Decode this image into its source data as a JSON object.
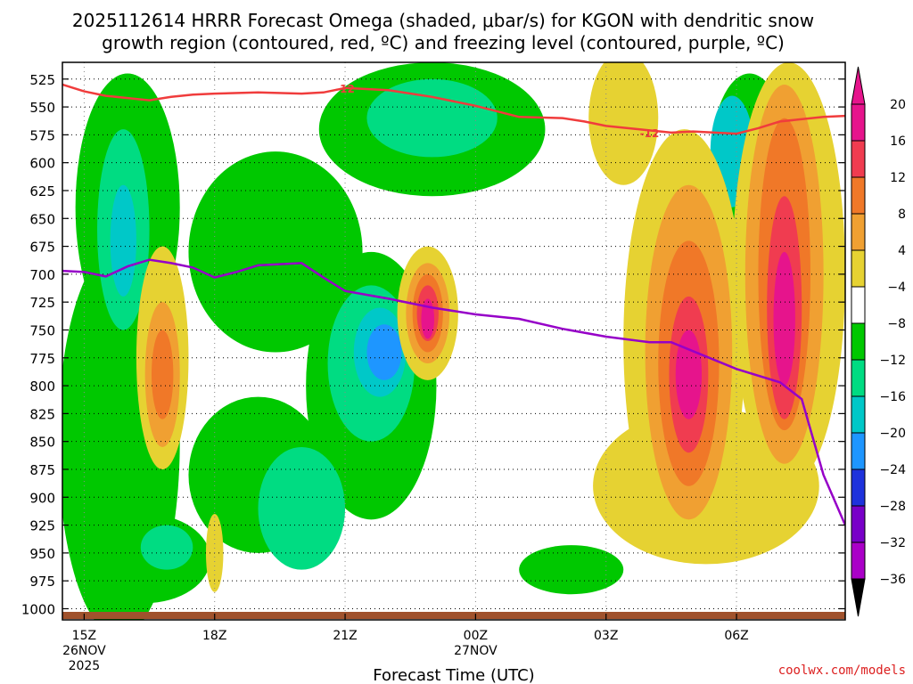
{
  "chart_data": {
    "type": "contour",
    "title_lines": [
      "2025112614 HRRR Forecast Omega (shaded, μbar/s) for KGON with dendritic snow",
      "growth region (contoured, red, ºC) and freezing level (contoured, purple, ºC)"
    ],
    "xlabel": "Forecast Time (UTC)",
    "credit": "coolwx.com/models",
    "x_range_hours": [
      14.5,
      32.5
    ],
    "y_range_mb": [
      1010,
      510
    ],
    "y_ticks": [
      525,
      550,
      575,
      600,
      625,
      650,
      675,
      700,
      725,
      750,
      775,
      800,
      825,
      850,
      875,
      900,
      925,
      950,
      975,
      1000
    ],
    "x_ticks": [
      {
        "hour": 15,
        "lines": [
          "15Z",
          "26NOV",
          "2025"
        ]
      },
      {
        "hour": 18,
        "lines": [
          "18Z"
        ]
      },
      {
        "hour": 21,
        "lines": [
          "21Z"
        ]
      },
      {
        "hour": 24,
        "lines": [
          "00Z",
          "27NOV"
        ]
      },
      {
        "hour": 27,
        "lines": [
          "03Z"
        ]
      },
      {
        "hour": 30,
        "lines": [
          "06Z"
        ]
      }
    ],
    "colorbar": {
      "levels": [
        20,
        16,
        12,
        8,
        4,
        -4,
        -8,
        -12,
        -16,
        -20,
        -24,
        -28,
        -32,
        -36
      ],
      "labels": [
        "20",
        "16",
        "12",
        "8",
        "4",
        "−4",
        "−8",
        "−12",
        "−16",
        "−20",
        "−24",
        "−28",
        "−32",
        "−36"
      ],
      "colors": [
        "#e6148c",
        "#f03c50",
        "#f07828",
        "#f0a032",
        "#e6d232",
        "#ffffff",
        "#00c800",
        "#00dc82",
        "#00c8c8",
        "#1e96ff",
        "#1e32dc",
        "#7800c8",
        "#aa00c8",
        "#a0a0a0"
      ]
    },
    "omega_regions": [
      {
        "color": "#00c800",
        "hour": 15.8,
        "p": 850,
        "rh": 1.4,
        "rp": 175
      },
      {
        "color": "#00c800",
        "hour": 16.0,
        "p": 640,
        "rh": 1.2,
        "rp": 120
      },
      {
        "color": "#00c800",
        "hour": 19.4,
        "p": 680,
        "rh": 2.0,
        "rp": 90
      },
      {
        "color": "#00c800",
        "hour": 19.0,
        "p": 880,
        "rh": 1.6,
        "rp": 70
      },
      {
        "color": "#00c800",
        "hour": 21.6,
        "p": 800,
        "rh": 1.5,
        "rp": 120
      },
      {
        "color": "#00c800",
        "hour": 23.0,
        "p": 570,
        "rh": 2.6,
        "rp": 60
      },
      {
        "color": "#00c800",
        "hour": 16.4,
        "p": 955,
        "rh": 1.5,
        "rp": 40
      },
      {
        "color": "#00c800",
        "hour": 26.2,
        "p": 965,
        "rh": 1.2,
        "rp": 22
      },
      {
        "color": "#00c800",
        "hour": 30.3,
        "p": 600,
        "rh": 0.9,
        "rp": 80
      },
      {
        "color": "#00dc82",
        "hour": 15.9,
        "p": 660,
        "rh": 0.6,
        "rp": 90
      },
      {
        "color": "#00dc82",
        "hour": 20.0,
        "p": 910,
        "rh": 1.0,
        "rp": 55
      },
      {
        "color": "#00dc82",
        "hour": 21.6,
        "p": 780,
        "rh": 1.0,
        "rp": 70
      },
      {
        "color": "#00dc82",
        "hour": 23.0,
        "p": 560,
        "rh": 1.5,
        "rp": 35
      },
      {
        "color": "#00dc82",
        "hour": 16.9,
        "p": 945,
        "rh": 0.6,
        "rp": 20
      },
      {
        "color": "#00c8c8",
        "hour": 21.8,
        "p": 770,
        "rh": 0.6,
        "rp": 40
      },
      {
        "color": "#00c8c8",
        "hour": 15.9,
        "p": 670,
        "rh": 0.3,
        "rp": 50
      },
      {
        "color": "#00c8c8",
        "hour": 29.9,
        "p": 590,
        "rh": 0.5,
        "rp": 50
      },
      {
        "color": "#1e96ff",
        "hour": 21.9,
        "p": 770,
        "rh": 0.4,
        "rp": 25
      },
      {
        "color": "#e6d232",
        "hour": 16.8,
        "p": 775,
        "rh": 0.6,
        "rp": 100
      },
      {
        "color": "#e6d232",
        "hour": 22.9,
        "p": 735,
        "rh": 0.7,
        "rp": 60
      },
      {
        "color": "#e6d232",
        "hour": 27.4,
        "p": 560,
        "rh": 0.8,
        "rp": 60
      },
      {
        "color": "#e6d232",
        "hour": 28.8,
        "p": 760,
        "rh": 1.4,
        "rp": 190
      },
      {
        "color": "#e6d232",
        "hour": 31.2,
        "p": 700,
        "rh": 1.3,
        "rp": 190
      },
      {
        "color": "#e6d232",
        "hour": 29.3,
        "p": 890,
        "rh": 2.6,
        "rp": 70
      },
      {
        "color": "#e6d232",
        "hour": 18.0,
        "p": 950,
        "rh": 0.2,
        "rp": 35
      },
      {
        "color": "#f0a032",
        "hour": 16.8,
        "p": 790,
        "rh": 0.4,
        "rp": 65
      },
      {
        "color": "#f0a032",
        "hour": 22.9,
        "p": 735,
        "rh": 0.5,
        "rp": 45
      },
      {
        "color": "#f0a032",
        "hour": 28.9,
        "p": 770,
        "rh": 1.0,
        "rp": 150
      },
      {
        "color": "#f0a032",
        "hour": 31.1,
        "p": 700,
        "rh": 0.9,
        "rp": 170
      },
      {
        "color": "#f07828",
        "hour": 16.8,
        "p": 790,
        "rh": 0.25,
        "rp": 40
      },
      {
        "color": "#f07828",
        "hour": 22.9,
        "p": 735,
        "rh": 0.35,
        "rp": 35
      },
      {
        "color": "#f07828",
        "hour": 28.9,
        "p": 780,
        "rh": 0.7,
        "rp": 110
      },
      {
        "color": "#f07828",
        "hour": 31.1,
        "p": 700,
        "rh": 0.6,
        "rp": 140
      },
      {
        "color": "#f03c50",
        "hour": 22.9,
        "p": 735,
        "rh": 0.25,
        "rp": 25
      },
      {
        "color": "#f03c50",
        "hour": 28.9,
        "p": 790,
        "rh": 0.45,
        "rp": 70
      },
      {
        "color": "#f03c50",
        "hour": 31.1,
        "p": 730,
        "rh": 0.4,
        "rp": 100
      },
      {
        "color": "#e6148c",
        "hour": 22.9,
        "p": 740,
        "rh": 0.15,
        "rp": 18
      },
      {
        "color": "#e6148c",
        "hour": 28.9,
        "p": 790,
        "rh": 0.3,
        "rp": 40
      },
      {
        "color": "#e6148c",
        "hour": 31.1,
        "p": 740,
        "rh": 0.25,
        "rp": 60
      }
    ],
    "dgz_minus12": {
      "label": "-12",
      "color": "#f03c3c",
      "points": [
        [
          14.5,
          530
        ],
        [
          15.0,
          536
        ],
        [
          15.5,
          540
        ],
        [
          16.0,
          542
        ],
        [
          16.5,
          544
        ],
        [
          17.0,
          541
        ],
        [
          17.5,
          539
        ],
        [
          18.0,
          538
        ],
        [
          19.0,
          537
        ],
        [
          20.0,
          538
        ],
        [
          20.5,
          537
        ],
        [
          21.0,
          533
        ],
        [
          22.0,
          535
        ],
        [
          23.0,
          541
        ],
        [
          24.0,
          549
        ],
        [
          25.0,
          559
        ],
        [
          26.0,
          560
        ],
        [
          26.5,
          563
        ],
        [
          27.0,
          567
        ],
        [
          28.0,
          571
        ],
        [
          28.5,
          573
        ],
        [
          29.0,
          572
        ],
        [
          30.0,
          574
        ],
        [
          30.5,
          569
        ],
        [
          31.0,
          563
        ],
        [
          32.0,
          559
        ],
        [
          32.5,
          558
        ]
      ],
      "label_positions": [
        [
          21.0,
          533
        ],
        [
          28.0,
          573
        ]
      ]
    },
    "freezing_level": {
      "color": "#9600c8",
      "points": [
        [
          14.5,
          697
        ],
        [
          15.0,
          698
        ],
        [
          15.5,
          702
        ],
        [
          16.0,
          693
        ],
        [
          16.5,
          687
        ],
        [
          17.0,
          690
        ],
        [
          17.5,
          694
        ],
        [
          18.0,
          703
        ],
        [
          18.5,
          698
        ],
        [
          19.0,
          692
        ],
        [
          19.5,
          691
        ],
        [
          20.0,
          690
        ],
        [
          20.5,
          703
        ],
        [
          21.0,
          715
        ],
        [
          22.0,
          722
        ],
        [
          23.0,
          730
        ],
        [
          24.0,
          736
        ],
        [
          25.0,
          740
        ],
        [
          26.0,
          749
        ],
        [
          27.0,
          756
        ],
        [
          28.0,
          761
        ],
        [
          28.5,
          761
        ],
        [
          29.0,
          769
        ],
        [
          30.0,
          785
        ],
        [
          31.0,
          797
        ],
        [
          31.5,
          812
        ],
        [
          32.0,
          880
        ],
        [
          32.5,
          925
        ]
      ]
    },
    "ground_color": "#a0522d"
  }
}
